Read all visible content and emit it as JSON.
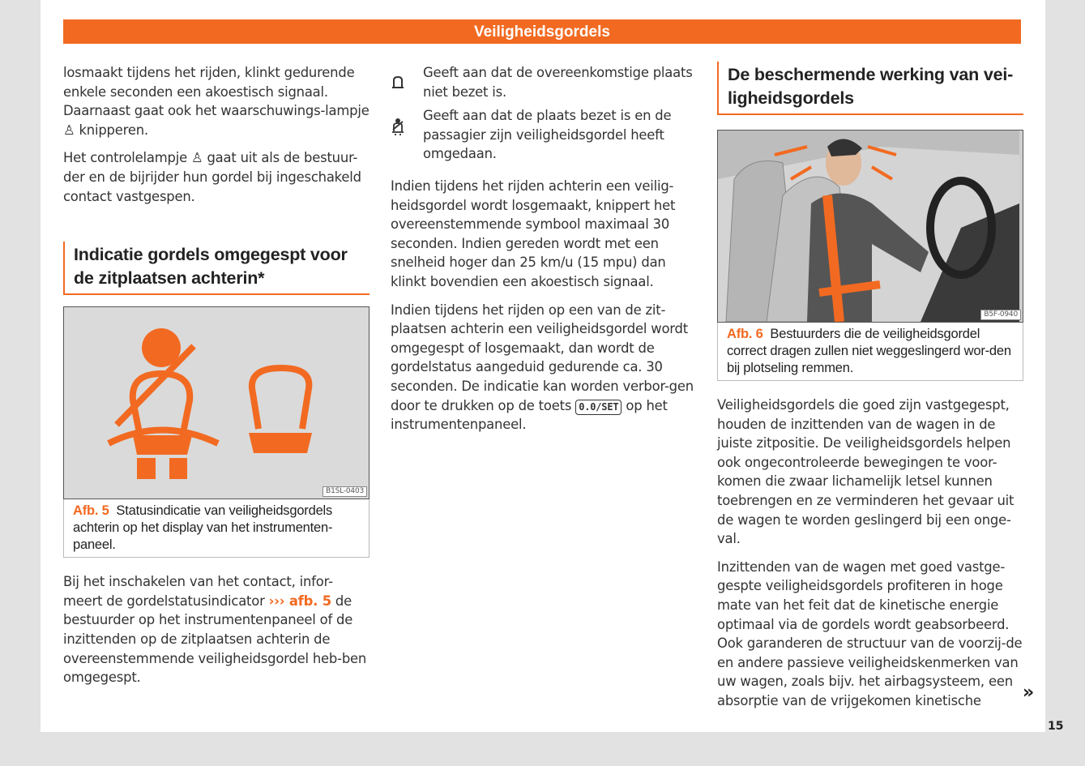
{
  "header": {
    "title": "Veiligheidsgordels"
  },
  "col1": {
    "p1_a": "losmaakt tijdens het rijden, klinkt gedurende enkele seconden een akoestisch signaal. Daarnaast gaat ook het waarschuwings-lampje ",
    "p1_b": " knipperen.",
    "p2_a": "Het controlelampje ",
    "p2_b": " gaat uit als de bestuur-der en de bijrijder hun gordel bij ingeschakeld contact vastgespen.",
    "heading": "Indicatie gordels omgegespt voor de zitplaatsen achterin*",
    "figure": {
      "code": "B1SL-0403",
      "label": "Afb. 5",
      "caption": "Statusindicatie van veiligheidsgordels achterin op het display van het instrumenten-paneel.",
      "icon_color": "#f26a21"
    },
    "p3_a": "Bij het inschakelen van het contact, infor-meert de gordelstatusindicator ",
    "p3_ref": "››› afb. 5",
    "p3_b": " de bestuurder op het instrumentenpaneel of de inzittenden op de zitplaatsen achterin de overeenstemmende veiligheidsgordel heb-ben omgegespt."
  },
  "col2": {
    "symbols": [
      {
        "icon": "seat-empty-icon",
        "text": "Geeft aan dat de overeenkomstige plaats niet bezet is."
      },
      {
        "icon": "seat-belted-icon",
        "text": "Geeft aan dat de plaats bezet is en de passagier zijn veiligheidsgordel heeft omgedaan."
      }
    ],
    "p1": "Indien tijdens het rijden achterin een veilig-heidsgordel wordt losgemaakt, knippert het overeenstemmende symbool maximaal 30 seconden. Indien gereden wordt met een snelheid hoger dan 25 km/u (15 mpu) dan klinkt bovendien een akoestisch signaal.",
    "p2_a": "Indien tijdens het rijden op een van de zit-plaatsen achterin een veiligheidsgordel wordt omgegespt of losgemaakt, dan wordt de gordelstatus aangeduid gedurende ca. 30 seconden. De indicatie kan worden verbor-gen door te drukken op de toets ",
    "p2_key": "0.0/SET",
    "p2_b": " op het instrumentenpaneel."
  },
  "col3": {
    "heading": "De beschermende werking van vei-ligheidsgordels",
    "figure": {
      "code": "B5F-0940",
      "label": "Afb. 6",
      "caption": "Bestuurders die de veiligheidsgordel correct dragen zullen niet weggeslingerd wor-den bij plotseling remmen."
    },
    "p1": "Veiligheidsgordels die goed zijn vastgegespt, houden de inzittenden van de wagen in de juiste zitpositie. De veiligheidsgordels helpen ook ongecontroleerde bewegingen te voor-komen die zwaar lichamelijk letsel kunnen toebrengen en ze verminderen het gevaar uit de wagen te worden geslingerd bij een onge-val.",
    "p2": "Inzittenden van de wagen met goed vastge-gespte veiligheidsgordels profiteren in hoge mate van het feit dat de kinetische energie optimaal via de gordels wordt geabsorbeerd. Ook garanderen de structuur van de voorzij-de en andere passieve veiligheidskenmerken van uw wagen, zoals bijv. het airbagsysteem, een absorptie van de vrijgekomen kinetische"
  },
  "footer": {
    "page": "15",
    "continue": "»"
  }
}
